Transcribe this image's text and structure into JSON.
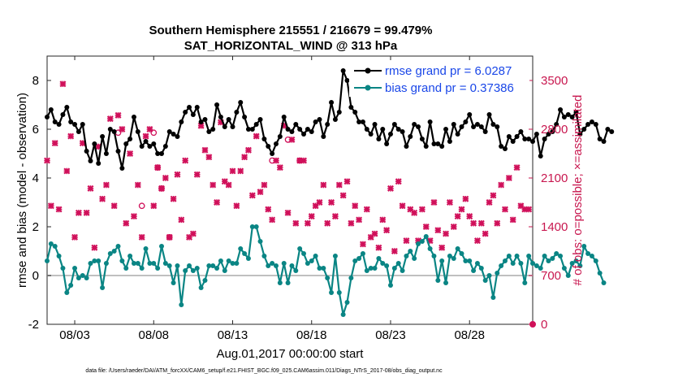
{
  "chart_data": {
    "type": "line",
    "title_line1": "Southern Hemisphere 215551 / 216679 = 99.479%",
    "title_line2": "SAT_HORIZONTAL_WIND @ 313 hPa",
    "xlabel": "Aug.01,2017 00:00:00 start",
    "ylabel_left": "rmse and bias (model - observation)",
    "ylabel_right": "# of obs: o=possible; ×=assimilated",
    "footnote": "data file: /Users/raeder/DAI/ATM_forcXX/CAM6_setup/f.e21.FHIST_BGC.f09_025.CAM6assim.011/Diags_NTrS_2017-08/obs_diag_output.nc",
    "x_ticks": [
      {
        "label": "08/03",
        "day": 3
      },
      {
        "label": "08/08",
        "day": 8
      },
      {
        "label": "08/13",
        "day": 13
      },
      {
        "label": "08/18",
        "day": 18
      },
      {
        "label": "08/23",
        "day": 23
      },
      {
        "label": "08/28",
        "day": 28
      }
    ],
    "xlim": [
      1.25,
      32.0
    ],
    "ylim_left": [
      -2,
      9
    ],
    "ylim_right": [
      0,
      3850
    ],
    "yticks_left": [
      "-2",
      "0",
      "2",
      "4",
      "6",
      "8"
    ],
    "yticks_right": [
      "0",
      "700",
      "1400",
      "2100",
      "2800",
      "3500"
    ],
    "time_step_days": 0.25,
    "start_day": 1.25,
    "legend_position": "top-right",
    "series": [
      {
        "name": "rmse grand pr = 6.0287",
        "color": "#000000",
        "axis": "left",
        "values": [
          6.5,
          6.8,
          6.3,
          6.2,
          6.6,
          6.9,
          6.3,
          6.2,
          5.9,
          6.2,
          5.1,
          4.7,
          5.4,
          4.6,
          5.7,
          5.0,
          6.0,
          5.9,
          5.1,
          4.4,
          5.4,
          5.6,
          6.5,
          5.9,
          5.3,
          5.5,
          5.3,
          5.4,
          5.0,
          5.0,
          5.3,
          5.9,
          5.8,
          5.7,
          6.3,
          6.7,
          6.9,
          6.6,
          6.9,
          6.3,
          6.4,
          5.9,
          6.0,
          7.0,
          6.5,
          6.1,
          6.4,
          6.1,
          6.7,
          7.1,
          6.5,
          6.0,
          6.0,
          6.2,
          6.4,
          5.6,
          5.3,
          5.0,
          5.4,
          5.7,
          6.5,
          6.0,
          5.9,
          6.2,
          6.0,
          5.8,
          6.0,
          5.9,
          6.3,
          6.4,
          5.7,
          6.2,
          7.1,
          6.4,
          6.7,
          8.4,
          8.0,
          6.9,
          6.7,
          6.3,
          6.3,
          6.0,
          5.8,
          6.2,
          5.6,
          6.0,
          5.4,
          5.8,
          6.2,
          6.0,
          5.9,
          5.3,
          5.7,
          6.2,
          6.1,
          5.6,
          5.3,
          6.3,
          5.4,
          5.4,
          5.3,
          6.0,
          5.5,
          6.2,
          5.8,
          6.1,
          6.3,
          6.6,
          6.1,
          6.2,
          6.1,
          5.9,
          6.6,
          6.2,
          6.1,
          5.3,
          5.2,
          5.7,
          5.5,
          5.7,
          5.9,
          5.6,
          5.6,
          5.5,
          5.8,
          4.9,
          5.6,
          5.8,
          5.9,
          6.2,
          6.8,
          6.5,
          6.6,
          6.5,
          6.7,
          5.8,
          6.0,
          6.2,
          6.3,
          6.2,
          5.6,
          5.5,
          6.0,
          5.9
        ],
        "marker_note": "filled circles joined by line"
      },
      {
        "name": "bias grand pr = 0.37386",
        "color": "#0a8584",
        "axis": "left",
        "values": [
          0.6,
          1.3,
          1.2,
          0.8,
          0.3,
          -0.7,
          -0.4,
          0.3,
          -0.1,
          0.0,
          -0.1,
          0.5,
          0.6,
          0.6,
          -0.5,
          0.5,
          0.9,
          1.0,
          1.2,
          0.6,
          0.3,
          0.8,
          0.5,
          0.5,
          0.3,
          1.1,
          0.5,
          0.5,
          0.3,
          1.2,
          0.5,
          0.4,
          -0.3,
          0.4,
          -1.2,
          0.2,
          0.4,
          0.2,
          0.3,
          -0.5,
          -0.2,
          0.4,
          0.4,
          0.3,
          0.6,
          0.2,
          0.6,
          0.5,
          0.5,
          1.1,
          0.9,
          0.7,
          2.0,
          2.0,
          1.4,
          0.8,
          0.4,
          0.5,
          0.4,
          -0.3,
          0.5,
          -0.3,
          0.4,
          0.2,
          1.1,
          0.9,
          0.5,
          0.6,
          0.8,
          0.3,
          0.3,
          -0.1,
          -0.7,
          0.8,
          -0.7,
          -1.6,
          -1.1,
          -0.1,
          0.6,
          0.7,
          0.9,
          0.2,
          0.3,
          0.3,
          0.7,
          0.5,
          0.4,
          -0.4,
          0.3,
          0.5,
          0.2,
          0.8,
          1.0,
          0.7,
          1.3,
          1.4,
          1.6,
          1.1,
          0.8,
          -0.2,
          0.6,
          -0.3,
          0.8,
          0.7,
          1.1,
          0.9,
          0.6,
          0.6,
          0.2,
          0.5,
          0.3,
          -0.2,
          0.0,
          -0.9,
          0.1,
          0.4,
          0.6,
          0.8,
          0.5,
          0.8,
          0.5,
          -0.3,
          0.8,
          0.5,
          0.4,
          0.3,
          0.8,
          0.6,
          0.7,
          0.9,
          0.8,
          0.3,
          0.0,
          0.5,
          0.6,
          0.4,
          1.2,
          0.9,
          0.8,
          0.6,
          0.1,
          -0.3
        ],
        "marker_note": "filled circles joined by line"
      }
    ],
    "obs_counts": {
      "color": "#d0105a",
      "axis": "right",
      "marker": "x",
      "points": [
        [
          1.25,
          2350
        ],
        [
          1.5,
          1700
        ],
        [
          1.75,
          2600
        ],
        [
          2.0,
          1650
        ],
        [
          2.25,
          3450
        ],
        [
          2.5,
          2200
        ],
        [
          2.75,
          2700
        ],
        [
          3.0,
          1250
        ],
        [
          3.25,
          1600
        ],
        [
          3.5,
          2600
        ],
        [
          3.75,
          1600
        ],
        [
          4.0,
          1950
        ],
        [
          4.25,
          1100
        ],
        [
          4.5,
          2550
        ],
        [
          4.75,
          1800
        ],
        [
          5.0,
          2000
        ],
        [
          5.25,
          2950
        ],
        [
          5.5,
          1700
        ],
        [
          5.75,
          3000
        ],
        [
          6.0,
          2800
        ],
        [
          6.25,
          1450
        ],
        [
          6.5,
          2450
        ],
        [
          6.75,
          1550
        ],
        [
          7.0,
          2000
        ],
        [
          7.25,
          1250
        ],
        [
          7.5,
          2700
        ],
        [
          7.75,
          2800
        ],
        [
          8.0,
          1700
        ],
        [
          8.25,
          2250
        ],
        [
          8.5,
          1950
        ],
        [
          8.75,
          2100
        ],
        [
          9.0,
          1250
        ],
        [
          9.25,
          1800
        ],
        [
          9.5,
          2150
        ],
        [
          9.75,
          1500
        ],
        [
          10.0,
          2350
        ],
        [
          10.25,
          1250
        ],
        [
          10.5,
          1300
        ],
        [
          10.75,
          2150
        ],
        [
          11.0,
          2850
        ],
        [
          11.25,
          2500
        ],
        [
          11.5,
          2400
        ],
        [
          11.75,
          2000
        ],
        [
          12.0,
          1750
        ],
        [
          12.25,
          2900
        ],
        [
          12.5,
          2050
        ],
        [
          12.75,
          2000
        ],
        [
          13.0,
          2200
        ],
        [
          13.25,
          1700
        ],
        [
          13.5,
          2200
        ],
        [
          13.75,
          2400
        ],
        [
          14.0,
          2500
        ],
        [
          14.25,
          1850
        ],
        [
          14.5,
          2700
        ],
        [
          14.75,
          1900
        ],
        [
          15.0,
          2000
        ],
        [
          15.25,
          1650
        ],
        [
          15.5,
          1500
        ],
        [
          15.75,
          2350
        ],
        [
          16.0,
          2250
        ],
        [
          16.25,
          2850
        ],
        [
          16.5,
          1600
        ],
        [
          16.75,
          2650
        ],
        [
          17.0,
          1450
        ],
        [
          17.25,
          2350
        ],
        [
          17.5,
          2350
        ],
        [
          17.75,
          1450
        ],
        [
          18.0,
          1550
        ],
        [
          18.25,
          1700
        ],
        [
          18.5,
          1750
        ],
        [
          18.75,
          2000
        ],
        [
          19.0,
          1450
        ],
        [
          19.25,
          1750
        ],
        [
          19.5,
          1550
        ],
        [
          19.75,
          2000
        ],
        [
          20.0,
          1850
        ],
        [
          20.25,
          2050
        ],
        [
          20.5,
          1450
        ],
        [
          20.75,
          1700
        ],
        [
          21.0,
          1500
        ],
        [
          21.25,
          1150
        ],
        [
          21.5,
          1650
        ],
        [
          21.75,
          1250
        ],
        [
          22.0,
          1300
        ],
        [
          22.25,
          1100
        ],
        [
          22.5,
          1500
        ],
        [
          22.75,
          1350
        ],
        [
          23.0,
          1950
        ],
        [
          23.25,
          1050
        ],
        [
          23.5,
          2050
        ],
        [
          23.75,
          1700
        ],
        [
          24.0,
          1200
        ],
        [
          24.25,
          1650
        ],
        [
          24.5,
          1600
        ],
        [
          24.75,
          1200
        ],
        [
          25.0,
          1650
        ],
        [
          25.25,
          1400
        ],
        [
          25.5,
          1200
        ],
        [
          25.75,
          1750
        ],
        [
          26.0,
          1350
        ],
        [
          26.25,
          1100
        ],
        [
          26.5,
          1300
        ],
        [
          26.75,
          1750
        ],
        [
          27.0,
          1400
        ],
        [
          27.25,
          1550
        ],
        [
          27.5,
          1650
        ],
        [
          27.75,
          1800
        ],
        [
          28.0,
          1550
        ],
        [
          28.25,
          1450
        ],
        [
          28.5,
          1200
        ],
        [
          28.75,
          1450
        ],
        [
          29.0,
          1300
        ],
        [
          29.25,
          1750
        ],
        [
          29.5,
          1850
        ],
        [
          29.75,
          1450
        ],
        [
          30.0,
          2000
        ],
        [
          30.25,
          1650
        ],
        [
          30.5,
          2100
        ],
        [
          30.75,
          1500
        ],
        [
          31.0,
          2250
        ],
        [
          31.25,
          1700
        ],
        [
          31.5,
          1650
        ],
        [
          31.75,
          1650
        ]
      ],
      "possible_points": [
        [
          5.75,
          2750
        ],
        [
          7.25,
          1700
        ],
        [
          8.0,
          2750
        ],
        [
          8.25,
          2250
        ],
        [
          8.5,
          1950
        ],
        [
          9.0,
          1250
        ],
        [
          15.5,
          2350
        ],
        [
          16.5,
          2650
        ],
        [
          17.25,
          2350
        ]
      ],
      "zero_point": [
        32.0,
        0
      ]
    },
    "zero_line_color": "#c0c0c0",
    "grid": false
  }
}
